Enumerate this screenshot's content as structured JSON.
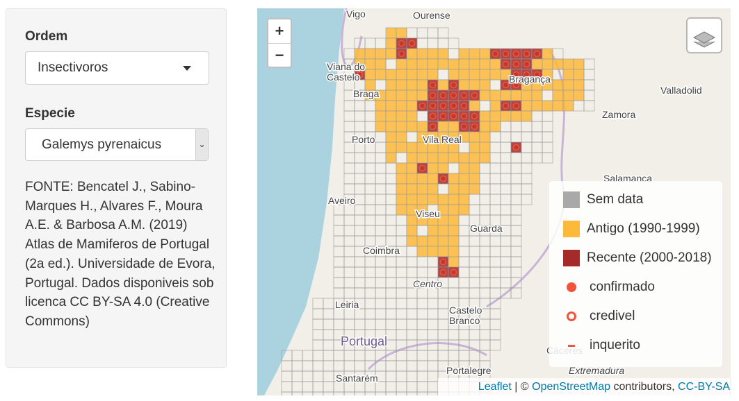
{
  "sidebar": {
    "ordem_label": "Ordem",
    "ordem_value": "Insectivoros",
    "especie_label": "Especie",
    "especie_value": "Galemys pyrenaicus",
    "source": "FONTE: Bencatel J., Sabino-Marques H., Alvares F., Moura A.E. & Barbosa A.M. (2019) Atlas de Mamiferos de Portugal (2a ed.). Universidade de Evora, Portugal. Dados disponiveis sob licenca CC BY-SA 4.0 (Creative Commons)"
  },
  "map": {
    "zoom_in": "+",
    "zoom_out": "−",
    "places": [
      {
        "lines": [
          "Vigo"
        ]
      },
      {
        "lines": [
          "Ourense"
        ]
      },
      {
        "lines": [
          "Viana do",
          "Castelo"
        ]
      },
      {
        "lines": [
          "Braga"
        ]
      },
      {
        "lines": [
          "Bragança"
        ]
      },
      {
        "lines": [
          "Valladolid"
        ]
      },
      {
        "lines": [
          "Zamora"
        ]
      },
      {
        "lines": [
          "Porto"
        ]
      },
      {
        "lines": [
          "Vila Real"
        ]
      },
      {
        "lines": [
          "Salamanca"
        ]
      },
      {
        "lines": [
          "Aveiro"
        ]
      },
      {
        "lines": [
          "Viseu"
        ]
      },
      {
        "lines": [
          "Guarda"
        ]
      },
      {
        "lines": [
          "Coimbra"
        ]
      },
      {
        "lines": [
          "Centro"
        ]
      },
      {
        "lines": [
          "Leiria"
        ]
      },
      {
        "lines": [
          "Castelo",
          "Branco"
        ]
      },
      {
        "lines": [
          "Portugal"
        ]
      },
      {
        "lines": [
          "Portalegre"
        ]
      },
      {
        "lines": [
          "Santarém"
        ]
      },
      {
        "lines": [
          "Cáceres"
        ]
      },
      {
        "lines": [
          "Extremadura"
        ]
      }
    ],
    "legend": [
      {
        "label": "Sem data",
        "color": "#a9a9a9"
      },
      {
        "label": "Antigo (1990-1999)",
        "color": "#fdb93a"
      },
      {
        "label": "Recente (2000-2018)",
        "color": "#a52a2a"
      },
      {
        "label": "confirmado",
        "color": "#f0553a"
      },
      {
        "label": "credivel",
        "color": "#f0553a"
      },
      {
        "label": "inquerito",
        "color": "#f0553a"
      }
    ],
    "attribution": [
      "Leaflet",
      " | © ",
      "OpenStreetMap",
      " contributors, ",
      "CC-BY-SA"
    ]
  }
}
